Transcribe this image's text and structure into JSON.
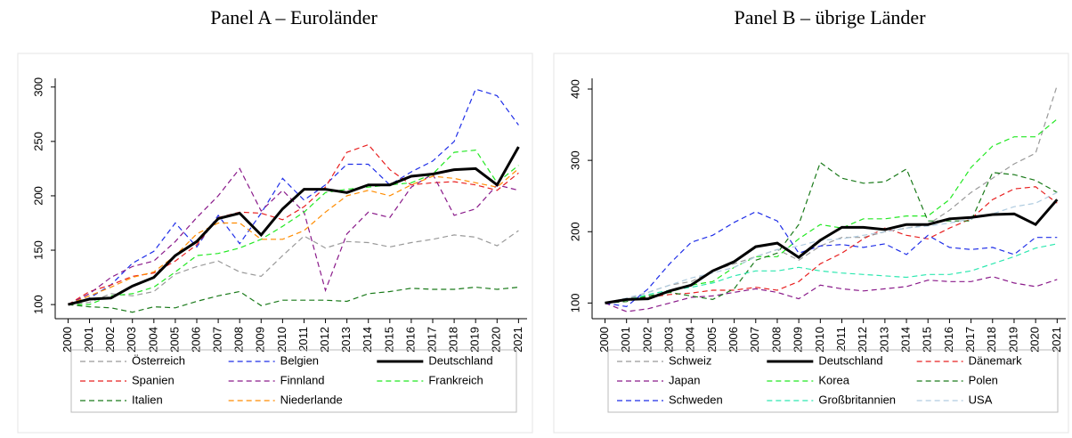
{
  "chart_data": [
    {
      "type": "line",
      "title": "Panel A – Euroländer",
      "x": [
        2000,
        2001,
        2002,
        2003,
        2004,
        2005,
        2006,
        2007,
        2008,
        2009,
        2010,
        2011,
        2012,
        2013,
        2014,
        2015,
        2016,
        2017,
        2018,
        2019,
        2020,
        2021
      ],
      "xlim": [
        1999.4,
        2021.4
      ],
      "xticks": [
        2000,
        2001,
        2002,
        2003,
        2004,
        2005,
        2006,
        2007,
        2008,
        2009,
        2010,
        2011,
        2012,
        2013,
        2014,
        2015,
        2016,
        2017,
        2018,
        2019,
        2020,
        2021
      ],
      "ylim": [
        87,
        308
      ],
      "yticks": [
        100,
        150,
        200,
        250,
        300
      ],
      "grid": false,
      "series": [
        {
          "name": "Österreich",
          "color": "#999999",
          "style": "dashed",
          "values": [
            100,
            102,
            110,
            108,
            112,
            128,
            135,
            140,
            130,
            126,
            145,
            163,
            152,
            158,
            157,
            153,
            157,
            160,
            164,
            162,
            154,
            168
          ]
        },
        {
          "name": "Belgien",
          "color": "#1f2ee8",
          "style": "dashed",
          "values": [
            100,
            106,
            118,
            138,
            149,
            175,
            153,
            182,
            156,
            184,
            216,
            196,
            210,
            229,
            229,
            210,
            222,
            232,
            250,
            298,
            292,
            265
          ]
        },
        {
          "name": "Deutschland",
          "color": "#000000",
          "style": "solid",
          "values": [
            100,
            105,
            106,
            117,
            125,
            145,
            158,
            179,
            184,
            164,
            188,
            206,
            206,
            203,
            210,
            210,
            218,
            220,
            224,
            225,
            210,
            245
          ]
        },
        {
          "name": "Spanien",
          "color": "#e82020",
          "style": "dashed",
          "values": [
            100,
            112,
            118,
            126,
            129,
            140,
            155,
            180,
            185,
            184,
            178,
            190,
            208,
            240,
            247,
            224,
            210,
            212,
            213,
            210,
            205,
            221
          ]
        },
        {
          "name": "Finnland",
          "color": "#8a1a8a",
          "style": "dashed",
          "values": [
            100,
            110,
            125,
            135,
            140,
            158,
            180,
            200,
            225,
            186,
            205,
            185,
            113,
            165,
            185,
            180,
            208,
            220,
            182,
            188,
            210,
            205
          ]
        },
        {
          "name": "Frankreich",
          "color": "#22e822",
          "style": "dashed",
          "values": [
            100,
            100,
            108,
            110,
            116,
            130,
            145,
            147,
            152,
            160,
            172,
            185,
            203,
            206,
            208,
            210,
            212,
            220,
            240,
            242,
            212,
            228
          ]
        },
        {
          "name": "Italien",
          "color": "#1a7a1a",
          "style": "dashed",
          "values": [
            100,
            98,
            97,
            93,
            98,
            97,
            103,
            108,
            112,
            99,
            104,
            104,
            104,
            103,
            110,
            112,
            115,
            114,
            114,
            116,
            114,
            116
          ]
        },
        {
          "name": "Niederlande",
          "color": "#ff8c00",
          "style": "dashed",
          "values": [
            100,
            108,
            116,
            125,
            130,
            145,
            165,
            175,
            175,
            160,
            160,
            168,
            185,
            200,
            205,
            200,
            210,
            218,
            216,
            212,
            208,
            225
          ]
        }
      ]
    },
    {
      "type": "line",
      "title": "Panel B – übrige Länder",
      "x": [
        2000,
        2001,
        2002,
        2003,
        2004,
        2005,
        2006,
        2007,
        2008,
        2009,
        2010,
        2011,
        2012,
        2013,
        2014,
        2015,
        2016,
        2017,
        2018,
        2019,
        2020,
        2021
      ],
      "xlim": [
        1999.4,
        2021.4
      ],
      "xticks": [
        2000,
        2001,
        2002,
        2003,
        2004,
        2005,
        2006,
        2007,
        2008,
        2009,
        2010,
        2011,
        2012,
        2013,
        2014,
        2015,
        2016,
        2017,
        2018,
        2019,
        2020,
        2021
      ],
      "ylim": [
        78,
        415
      ],
      "yticks": [
        100,
        200,
        300,
        400
      ],
      "grid": false,
      "series": [
        {
          "name": "Schweiz",
          "color": "#999999",
          "style": "dashed",
          "values": [
            100,
            105,
            115,
            125,
            130,
            145,
            155,
            165,
            175,
            160,
            180,
            192,
            192,
            200,
            205,
            210,
            230,
            255,
            275,
            295,
            310,
            405
          ]
        },
        {
          "name": "Deutschland",
          "color": "#000000",
          "style": "solid",
          "values": [
            100,
            105,
            106,
            117,
            125,
            145,
            158,
            179,
            184,
            164,
            188,
            206,
            206,
            203,
            210,
            210,
            218,
            220,
            224,
            225,
            210,
            245
          ]
        },
        {
          "name": "Dänemark",
          "color": "#e82020",
          "style": "dashed",
          "values": [
            100,
            105,
            108,
            112,
            114,
            118,
            118,
            122,
            118,
            130,
            155,
            170,
            190,
            205,
            195,
            190,
            205,
            218,
            245,
            260,
            263,
            240
          ]
        },
        {
          "name": "Japan",
          "color": "#8a1a8a",
          "style": "dashed",
          "values": [
            100,
            88,
            92,
            100,
            108,
            110,
            115,
            120,
            115,
            106,
            125,
            120,
            117,
            120,
            123,
            132,
            130,
            130,
            137,
            128,
            123,
            133
          ]
        },
        {
          "name": "Korea",
          "color": "#22e822",
          "style": "dashed",
          "values": [
            100,
            105,
            110,
            115,
            125,
            130,
            150,
            165,
            165,
            190,
            210,
            205,
            218,
            218,
            222,
            222,
            245,
            290,
            320,
            333,
            333,
            358
          ]
        },
        {
          "name": "Polen",
          "color": "#1a7a1a",
          "style": "dashed",
          "values": [
            100,
            102,
            110,
            115,
            110,
            105,
            120,
            160,
            170,
            210,
            297,
            275,
            268,
            270,
            288,
            215,
            215,
            215,
            283,
            280,
            272,
            255
          ]
        },
        {
          "name": "Schweden",
          "color": "#1f2ee8",
          "style": "dashed",
          "values": [
            100,
            95,
            120,
            155,
            185,
            195,
            213,
            228,
            215,
            170,
            180,
            182,
            178,
            183,
            168,
            195,
            178,
            175,
            178,
            168,
            192,
            192
          ]
        },
        {
          "name": "Großbritannien",
          "color": "#2ee8b0",
          "style": "dashed",
          "values": [
            100,
            104,
            112,
            118,
            122,
            128,
            138,
            145,
            145,
            150,
            145,
            142,
            140,
            138,
            136,
            140,
            140,
            145,
            155,
            165,
            177,
            183
          ]
        },
        {
          "name": "USA",
          "color": "#b0cce0",
          "style": "dashed",
          "values": [
            100,
            107,
            115,
            125,
            135,
            142,
            150,
            165,
            175,
            180,
            188,
            190,
            195,
            200,
            205,
            208,
            212,
            218,
            225,
            235,
            240,
            255
          ]
        }
      ]
    }
  ]
}
